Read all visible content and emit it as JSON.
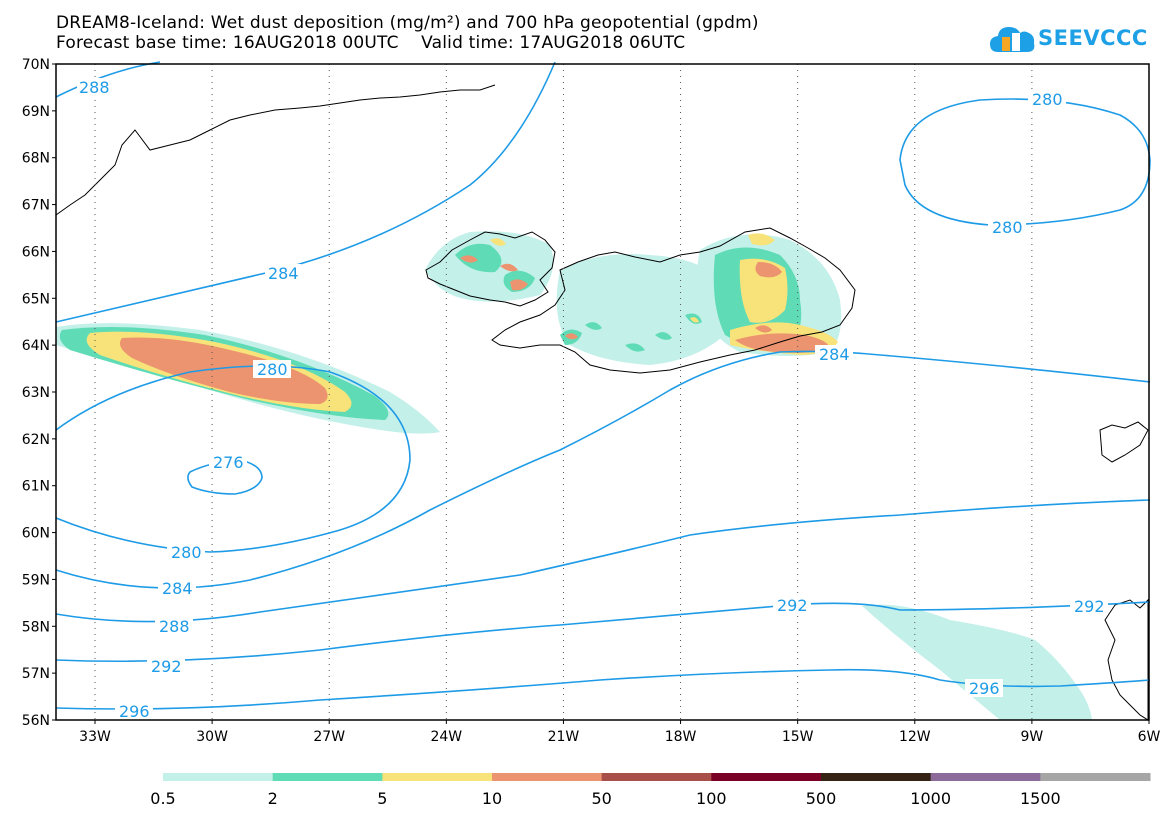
{
  "title": {
    "line1": "DREAM8-Iceland: Wet dust deposition (mg/m²) and 700 hPa geopotential (gpdm)",
    "line2": "Forecast base time: 16AUG2018 00UTC    Valid time: 17AUG2018 06UTC"
  },
  "logo": {
    "text": "SEEVCCC",
    "icon": "cloud-icon"
  },
  "map": {
    "lat_labels": [
      "70N",
      "69N",
      "68N",
      "67N",
      "66N",
      "65N",
      "64N",
      "63N",
      "62N",
      "61N",
      "60N",
      "59N",
      "58N",
      "57N",
      "56N"
    ],
    "lon_labels": [
      "33W",
      "30W",
      "27W",
      "24W",
      "21W",
      "18W",
      "15W",
      "12W",
      "9W",
      "6W"
    ],
    "contour_labels": {
      "c288_top": "288",
      "c284_mid": "284",
      "c280_top_right": "280",
      "c280_right_low": "280",
      "c280_left": "280",
      "c276": "276",
      "c280_bottom": "280",
      "c284_bottom": "284",
      "c288_bottom": "288",
      "c292_bottom": "292",
      "c296_bottom": "296",
      "c284_iceland": "284",
      "c292_right": "292",
      "c292_far_right": "292",
      "c296_right": "296"
    },
    "contour_color": "#1e9be6"
  },
  "legend": {
    "colors": [
      "#c4f0ea",
      "#5fdcb5",
      "#f7e37a",
      "#ec9370",
      "#a84f4a",
      "#7a0026",
      "#352414",
      "#8c6a99",
      "#a6a6a6"
    ],
    "labels": [
      "0.5",
      "2",
      "5",
      "10",
      "50",
      "100",
      "500",
      "1000",
      "1500"
    ]
  }
}
